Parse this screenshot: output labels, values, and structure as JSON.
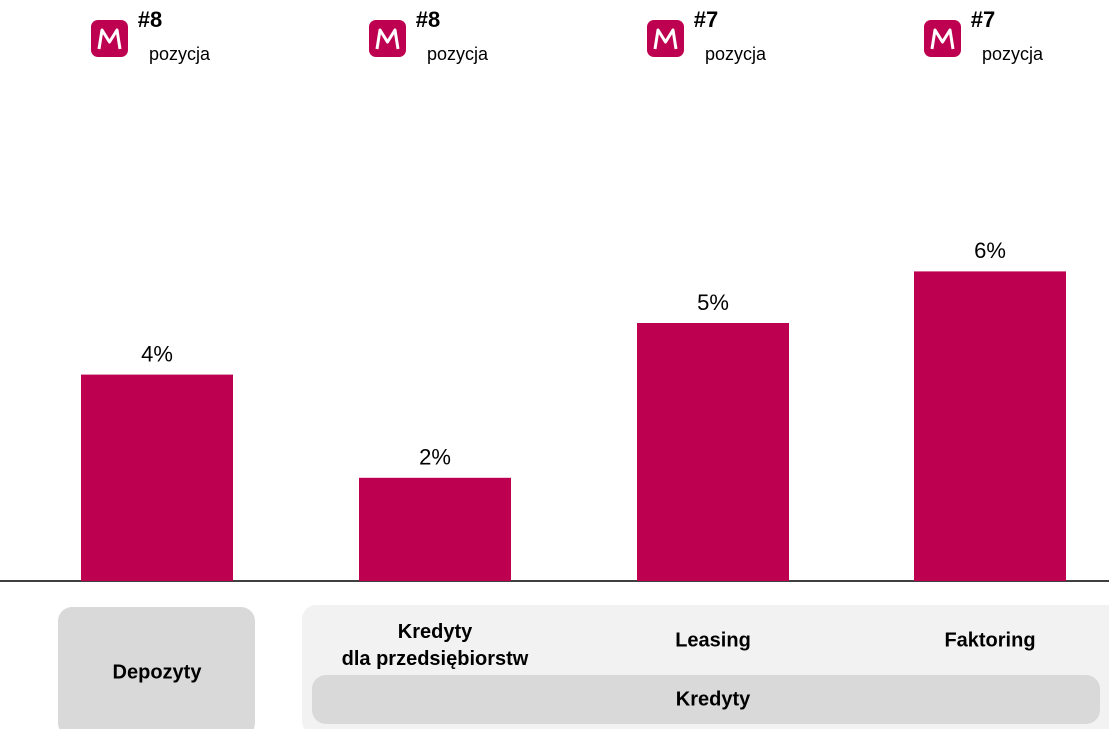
{
  "chart_data": {
    "type": "bar",
    "categories": [
      "Depozyty",
      "Kredyty\ndla przedsiębiorstw",
      "Leasing",
      "Faktoring"
    ],
    "values": [
      4,
      2,
      5,
      6
    ],
    "value_labels": [
      "4%",
      "2%",
      "5%",
      "6%"
    ],
    "color": "#bd0050",
    "ranks": [
      "#8",
      "#8",
      "#7",
      "#7"
    ],
    "rank_caption": "pozycja",
    "group_label": "Kredyty"
  }
}
